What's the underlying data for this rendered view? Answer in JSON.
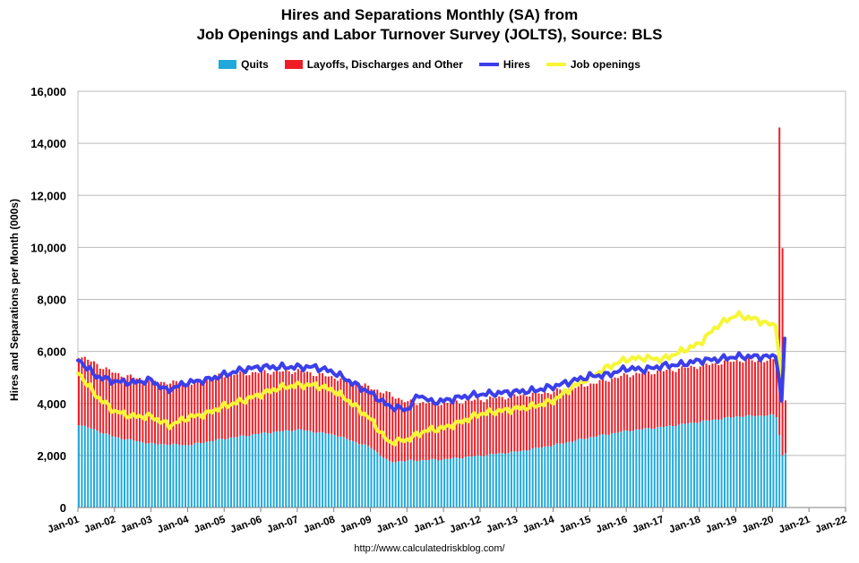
{
  "chart_data": {
    "type": "bar",
    "title": "Hires and Separations Monthly (SA) from",
    "subtitle": "Job Openings and Labor Turnover Survey (JOLTS), Source: BLS",
    "ylabel": "Hires and Separations per Month (000s)",
    "xlabel": "",
    "source": "http://www.calculatedriskblog.com/",
    "ylim": [
      0,
      16000
    ],
    "yticks": [
      0,
      2000,
      4000,
      6000,
      8000,
      10000,
      12000,
      14000,
      16000
    ],
    "ytick_labels": [
      "0",
      "2,000",
      "4,000",
      "6,000",
      "8,000",
      "10,000",
      "12,000",
      "14,000",
      "16,000"
    ],
    "xlim": [
      "2001-01",
      "2022-01"
    ],
    "xtick_labels": [
      "Jan-01",
      "Jan-02",
      "Jan-03",
      "Jan-04",
      "Jan-05",
      "Jan-06",
      "Jan-07",
      "Jan-08",
      "Jan-09",
      "Jan-10",
      "Jan-11",
      "Jan-12",
      "Jan-13",
      "Jan-14",
      "Jan-15",
      "Jan-16",
      "Jan-17",
      "Jan-18",
      "Jan-19",
      "Jan-20",
      "Jan-21",
      "Jan-22"
    ],
    "grid": "horizontal",
    "legend_position": "top",
    "stacked": true,
    "series": [
      {
        "name": "Quits",
        "kind": "bar",
        "color": "#1fa8dc",
        "x": [
          "2001-01",
          "2002-01",
          "2003-01",
          "2004-01",
          "2005-01",
          "2006-01",
          "2007-01",
          "2008-01",
          "2009-01",
          "2009-07",
          "2010-01",
          "2011-01",
          "2012-01",
          "2013-01",
          "2014-01",
          "2015-01",
          "2016-01",
          "2017-01",
          "2018-01",
          "2019-01",
          "2020-01",
          "2020-02",
          "2020-03",
          "2020-04",
          "2020-05"
        ],
        "values": [
          3200,
          2700,
          2450,
          2400,
          2650,
          2850,
          3000,
          2800,
          2300,
          1750,
          1800,
          1850,
          2000,
          2150,
          2400,
          2700,
          2950,
          3100,
          3300,
          3500,
          3550,
          3500,
          2800,
          2000,
          2100
        ]
      },
      {
        "name": "Layoffs, Discharges and Other",
        "kind": "bar",
        "color": "#ee1c25",
        "x": [
          "2001-01",
          "2002-01",
          "2003-01",
          "2004-01",
          "2005-01",
          "2006-01",
          "2007-01",
          "2008-01",
          "2009-01",
          "2009-07",
          "2010-01",
          "2011-01",
          "2012-01",
          "2013-01",
          "2014-01",
          "2015-01",
          "2016-01",
          "2017-01",
          "2018-01",
          "2019-01",
          "2020-01",
          "2020-02",
          "2020-03",
          "2020-04",
          "2020-05"
        ],
        "values": [
          2650,
          2450,
          2400,
          2350,
          2450,
          2350,
          2250,
          2200,
          2300,
          2600,
          2250,
          2150,
          2150,
          2150,
          2050,
          2050,
          2150,
          2150,
          2150,
          2150,
          2100,
          2200,
          11850,
          7950,
          2050
        ]
      },
      {
        "name": "Hires",
        "kind": "line",
        "color": "#3b3fea",
        "x": [
          "2001-01",
          "2001-07",
          "2002-01",
          "2002-07",
          "2003-01",
          "2003-06",
          "2004-01",
          "2004-07",
          "2005-01",
          "2005-07",
          "2006-01",
          "2006-07",
          "2007-01",
          "2007-07",
          "2008-01",
          "2008-07",
          "2009-01",
          "2009-07",
          "2010-01",
          "2010-05",
          "2010-09",
          "2011-01",
          "2011-07",
          "2012-01",
          "2012-07",
          "2013-01",
          "2013-07",
          "2014-01",
          "2014-07",
          "2015-01",
          "2015-07",
          "2016-01",
          "2016-07",
          "2017-01",
          "2017-07",
          "2018-01",
          "2018-07",
          "2019-01",
          "2019-07",
          "2020-01",
          "2020-02",
          "2020-03",
          "2020-04",
          "2020-05"
        ],
        "values": [
          5700,
          5050,
          4850,
          4800,
          4900,
          4500,
          4800,
          4900,
          5100,
          5300,
          5400,
          5400,
          5400,
          5400,
          5200,
          4800,
          4400,
          3900,
          3750,
          4350,
          4050,
          4100,
          4250,
          4350,
          4400,
          4450,
          4500,
          4650,
          4850,
          5050,
          5100,
          5350,
          5300,
          5450,
          5500,
          5650,
          5700,
          5800,
          5800,
          5800,
          5800,
          5100,
          4100,
          6500
        ]
      },
      {
        "name": "Job openings",
        "kind": "line",
        "color": "#f6f636",
        "x": [
          "2001-01",
          "2001-07",
          "2002-01",
          "2002-07",
          "2003-01",
          "2003-07",
          "2004-01",
          "2004-07",
          "2005-01",
          "2005-07",
          "2006-01",
          "2006-07",
          "2007-01",
          "2007-07",
          "2008-01",
          "2008-07",
          "2009-01",
          "2009-07",
          "2010-01",
          "2010-07",
          "2011-01",
          "2011-07",
          "2012-01",
          "2012-07",
          "2013-01",
          "2013-07",
          "2014-01",
          "2014-07",
          "2015-01",
          "2015-07",
          "2016-01",
          "2016-07",
          "2017-01",
          "2017-07",
          "2018-01",
          "2018-07",
          "2019-01",
          "2019-07",
          "2020-01",
          "2020-02",
          "2020-03",
          "2020-04",
          "2020-05"
        ],
        "values": [
          5200,
          4300,
          3700,
          3500,
          3500,
          3150,
          3450,
          3600,
          3900,
          4100,
          4350,
          4600,
          4700,
          4700,
          4500,
          4000,
          3400,
          2500,
          2600,
          2950,
          3050,
          3300,
          3600,
          3700,
          3800,
          3900,
          4100,
          4600,
          5000,
          5400,
          5700,
          5750,
          5700,
          6000,
          6300,
          7000,
          7400,
          7250,
          7000,
          7000,
          6000,
          4900,
          5400
        ]
      }
    ]
  }
}
